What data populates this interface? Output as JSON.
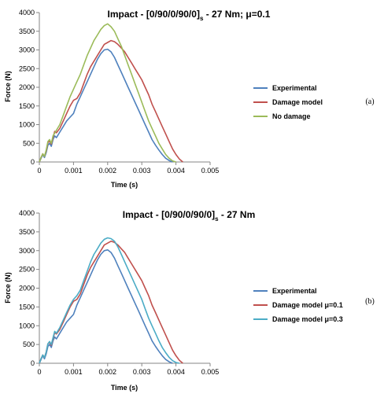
{
  "chart_data": [
    {
      "type": "line",
      "title_main": "Impact - [0/90/0/90/0]",
      "title_sub": "s",
      "title_tail": " - 27 Nm; μ=0.1",
      "xlabel": "Time (s)",
      "ylabel": "Force (N)",
      "xlim": [
        0,
        0.005
      ],
      "ylim": [
        0,
        4000
      ],
      "xticks": [
        0,
        0.001,
        0.002,
        0.003,
        0.004,
        0.005
      ],
      "xtick_labels": [
        "0",
        "0.001",
        "0.002",
        "0.003",
        "0.004",
        "0.005"
      ],
      "yticks": [
        0,
        500,
        1000,
        1500,
        2000,
        2500,
        3000,
        3500,
        4000
      ],
      "ytick_labels": [
        "0",
        "500",
        "1000",
        "1500",
        "2000",
        "2500",
        "3000",
        "3500",
        "4000"
      ],
      "grid": false,
      "legend_position": "right",
      "panel_tag": "(a)",
      "series": [
        {
          "name": "Experimental",
          "color": "#4f81bd",
          "x": [
            0,
            5e-05,
            0.0001,
            0.00015,
            0.0002,
            0.00025,
            0.0003,
            0.00035,
            0.0004,
            0.00045,
            0.0005,
            0.0006,
            0.0007,
            0.0008,
            0.0009,
            0.001,
            0.0011,
            0.0012,
            0.0013,
            0.0014,
            0.0015,
            0.0016,
            0.0017,
            0.0018,
            0.0019,
            0.002,
            0.0021,
            0.0022,
            0.0023,
            0.0024,
            0.0025,
            0.0026,
            0.0027,
            0.0028,
            0.0029,
            0.003,
            0.0031,
            0.0032,
            0.0033,
            0.0034,
            0.0035,
            0.0036,
            0.0037,
            0.0038,
            0.0039
          ],
          "y": [
            0,
            100,
            200,
            120,
            250,
            450,
            500,
            420,
            600,
            700,
            650,
            800,
            950,
            1100,
            1200,
            1300,
            1550,
            1750,
            1950,
            2150,
            2350,
            2550,
            2750,
            2900,
            3000,
            3020,
            2950,
            2800,
            2600,
            2400,
            2200,
            2000,
            1800,
            1600,
            1400,
            1200,
            1000,
            800,
            600,
            450,
            320,
            200,
            100,
            40,
            0
          ]
        },
        {
          "name": "Damage model",
          "color": "#c0504d",
          "x": [
            0,
            5e-05,
            0.0001,
            0.00015,
            0.0002,
            0.00025,
            0.0003,
            0.00035,
            0.0004,
            0.00045,
            0.0005,
            0.0006,
            0.0007,
            0.0008,
            0.0009,
            0.001,
            0.0011,
            0.0012,
            0.0013,
            0.0014,
            0.0015,
            0.0016,
            0.0017,
            0.0018,
            0.0019,
            0.002,
            0.0021,
            0.0022,
            0.0023,
            0.0024,
            0.0025,
            0.0026,
            0.0027,
            0.0028,
            0.0029,
            0.003,
            0.0031,
            0.0032,
            0.0033,
            0.0034,
            0.0035,
            0.0036,
            0.0037,
            0.0038,
            0.0039,
            0.004,
            0.0041,
            0.0042
          ],
          "y": [
            0,
            120,
            220,
            150,
            300,
            520,
            560,
            480,
            650,
            820,
            780,
            900,
            1100,
            1300,
            1500,
            1650,
            1700,
            1850,
            2100,
            2350,
            2550,
            2700,
            2850,
            3000,
            3150,
            3200,
            3250,
            3220,
            3150,
            3050,
            2950,
            2800,
            2650,
            2500,
            2350,
            2200,
            2000,
            1800,
            1550,
            1350,
            1150,
            950,
            750,
            550,
            350,
            200,
            80,
            0
          ]
        },
        {
          "name": "No damage",
          "color": "#9bbb59",
          "x": [
            0,
            5e-05,
            0.0001,
            0.00015,
            0.0002,
            0.00025,
            0.0003,
            0.00035,
            0.0004,
            0.0005,
            0.0006,
            0.0007,
            0.0008,
            0.0009,
            0.001,
            0.0011,
            0.0012,
            0.0013,
            0.0014,
            0.0015,
            0.0016,
            0.0017,
            0.0018,
            0.0019,
            0.002,
            0.0021,
            0.0022,
            0.0023,
            0.0024,
            0.0025,
            0.0026,
            0.0027,
            0.0028,
            0.0029,
            0.003,
            0.0031,
            0.0032,
            0.0033,
            0.0034,
            0.0035,
            0.0036,
            0.0037,
            0.0038,
            0.0039,
            0.004
          ],
          "y": [
            0,
            120,
            220,
            150,
            320,
            550,
            600,
            500,
            700,
            850,
            1000,
            1250,
            1500,
            1750,
            1950,
            2150,
            2350,
            2600,
            2850,
            3050,
            3250,
            3400,
            3550,
            3650,
            3700,
            3620,
            3500,
            3300,
            3100,
            2850,
            2600,
            2350,
            2100,
            1850,
            1600,
            1350,
            1100,
            900,
            700,
            500,
            350,
            200,
            100,
            30,
            0
          ]
        }
      ]
    },
    {
      "type": "line",
      "title_main": "Impact - [0/90/0/90/0]",
      "title_sub": "s",
      "title_tail": " - 27 Nm",
      "xlabel": "Time (s)",
      "ylabel": "Force (N)",
      "xlim": [
        0,
        0.005
      ],
      "ylim": [
        0,
        4000
      ],
      "xticks": [
        0,
        0.001,
        0.002,
        0.003,
        0.004,
        0.005
      ],
      "xtick_labels": [
        "0",
        "0.001",
        "0.002",
        "0.003",
        "0.004",
        "0.005"
      ],
      "yticks": [
        0,
        500,
        1000,
        1500,
        2000,
        2500,
        3000,
        3500,
        4000
      ],
      "ytick_labels": [
        "0",
        "500",
        "1000",
        "1500",
        "2000",
        "2500",
        "3000",
        "3500",
        "4000"
      ],
      "grid": false,
      "legend_position": "right",
      "panel_tag": "(b)",
      "series": [
        {
          "name": "Experimental",
          "color": "#4f81bd",
          "x": [
            0,
            5e-05,
            0.0001,
            0.00015,
            0.0002,
            0.00025,
            0.0003,
            0.00035,
            0.0004,
            0.00045,
            0.0005,
            0.0006,
            0.0007,
            0.0008,
            0.0009,
            0.001,
            0.0011,
            0.0012,
            0.0013,
            0.0014,
            0.0015,
            0.0016,
            0.0017,
            0.0018,
            0.0019,
            0.002,
            0.0021,
            0.0022,
            0.0023,
            0.0024,
            0.0025,
            0.0026,
            0.0027,
            0.0028,
            0.0029,
            0.003,
            0.0031,
            0.0032,
            0.0033,
            0.0034,
            0.0035,
            0.0036,
            0.0037,
            0.0038,
            0.0039
          ],
          "y": [
            0,
            100,
            200,
            120,
            250,
            450,
            500,
            420,
            600,
            700,
            650,
            800,
            950,
            1100,
            1200,
            1300,
            1550,
            1750,
            1950,
            2150,
            2350,
            2550,
            2750,
            2900,
            3000,
            3020,
            2950,
            2800,
            2600,
            2400,
            2200,
            2000,
            1800,
            1600,
            1400,
            1200,
            1000,
            800,
            600,
            450,
            320,
            200,
            100,
            40,
            0
          ]
        },
        {
          "name": "Damage model μ=0.1",
          "color": "#c0504d",
          "x": [
            0,
            5e-05,
            0.0001,
            0.00015,
            0.0002,
            0.00025,
            0.0003,
            0.00035,
            0.0004,
            0.00045,
            0.0005,
            0.0006,
            0.0007,
            0.0008,
            0.0009,
            0.001,
            0.0011,
            0.0012,
            0.0013,
            0.0014,
            0.0015,
            0.0016,
            0.0017,
            0.0018,
            0.0019,
            0.002,
            0.0021,
            0.0022,
            0.0023,
            0.0024,
            0.0025,
            0.0026,
            0.0027,
            0.0028,
            0.0029,
            0.003,
            0.0031,
            0.0032,
            0.0033,
            0.0034,
            0.0035,
            0.0036,
            0.0037,
            0.0038,
            0.0039,
            0.004,
            0.0041,
            0.0042
          ],
          "y": [
            0,
            120,
            220,
            150,
            300,
            520,
            560,
            480,
            650,
            820,
            780,
            900,
            1100,
            1300,
            1500,
            1650,
            1700,
            1850,
            2100,
            2350,
            2550,
            2700,
            2850,
            3000,
            3150,
            3200,
            3250,
            3220,
            3150,
            3050,
            2950,
            2800,
            2650,
            2500,
            2350,
            2200,
            2000,
            1800,
            1550,
            1350,
            1150,
            950,
            750,
            550,
            350,
            200,
            80,
            0
          ]
        },
        {
          "name": "Damage model μ=0.3",
          "color": "#4bacc6",
          "x": [
            0,
            5e-05,
            0.0001,
            0.00015,
            0.0002,
            0.00025,
            0.0003,
            0.00035,
            0.0004,
            0.00045,
            0.0005,
            0.0006,
            0.0007,
            0.0008,
            0.0009,
            0.001,
            0.0011,
            0.0012,
            0.0013,
            0.0014,
            0.0015,
            0.0016,
            0.0017,
            0.0018,
            0.0019,
            0.002,
            0.0021,
            0.0022,
            0.0023,
            0.0024,
            0.0025,
            0.0026,
            0.0027,
            0.0028,
            0.0029,
            0.003,
            0.0031,
            0.0032,
            0.0033,
            0.0034,
            0.0035,
            0.0036,
            0.0037,
            0.0038,
            0.0039,
            0.004,
            0.0041
          ],
          "y": [
            0,
            120,
            220,
            150,
            300,
            520,
            580,
            500,
            680,
            850,
            800,
            950,
            1150,
            1350,
            1550,
            1700,
            1800,
            1950,
            2200,
            2450,
            2700,
            2900,
            3050,
            3200,
            3300,
            3340,
            3320,
            3250,
            3100,
            2900,
            2700,
            2500,
            2300,
            2100,
            1900,
            1700,
            1450,
            1200,
            1000,
            800,
            600,
            420,
            280,
            160,
            70,
            20,
            0
          ]
        }
      ]
    }
  ]
}
